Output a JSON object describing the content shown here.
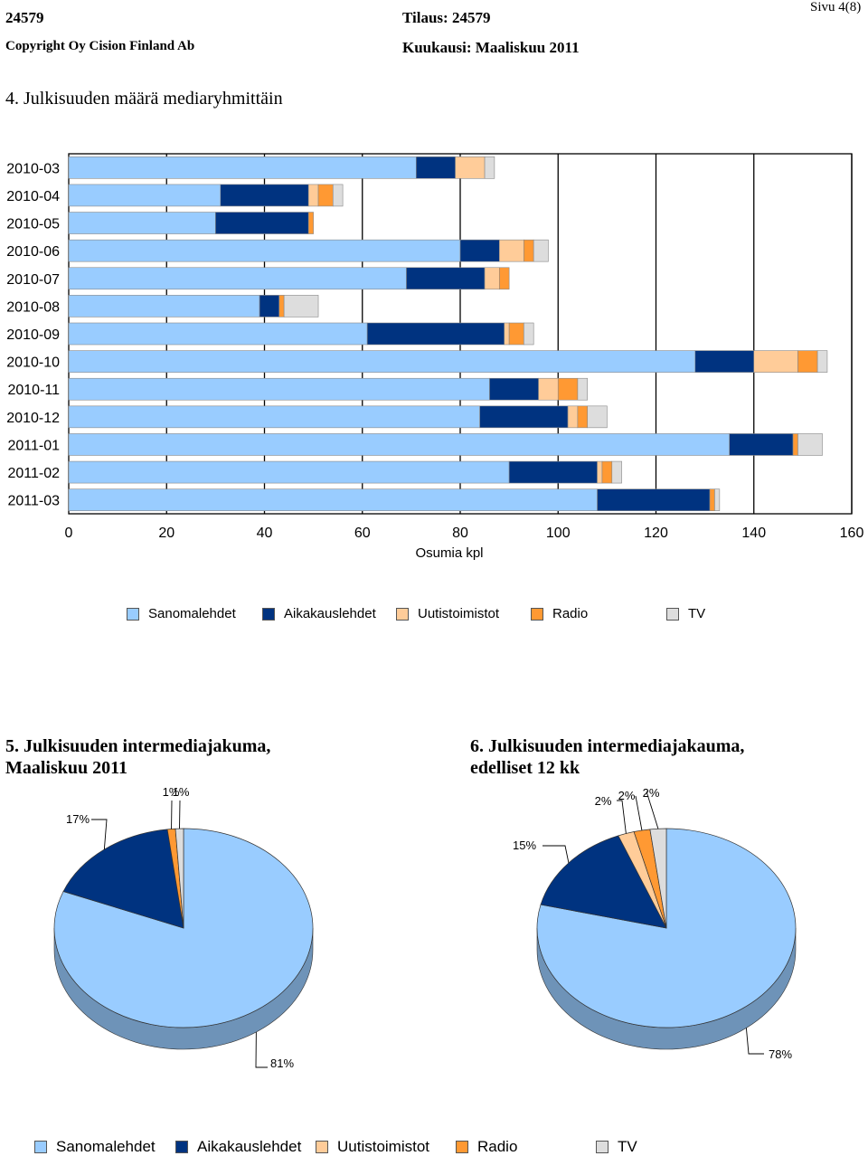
{
  "header": {
    "id": "24579",
    "order": "Tilaus: 24579",
    "page": "Sivu 4(8)",
    "copyright": "Copyright Oy Cision Finland Ab",
    "month": "Kuukausi: Maaliskuu 2011"
  },
  "section4": {
    "title": "4. Julkisuuden määrä mediaryhmittäin"
  },
  "section5": {
    "title_line1": "5. Julkisuuden intermediajakuma,",
    "title_line2": "Maaliskuu 2011"
  },
  "section6": {
    "title_line1": "6. Julkisuuden intermediajakauma,",
    "title_line2": "edelliset 12 kk"
  },
  "colors": {
    "Sanomalehdet": "#99ccff",
    "Aikakauslehdet": "#003380",
    "Uutistoimistot": "#ffcc99",
    "Radio": "#ff9933",
    "TV": "#dddddd"
  },
  "legend": [
    "Sanomalehdet",
    "Aikakauslehdet",
    "Uutistoimistot",
    "Radio",
    "TV"
  ],
  "chart_data": [
    {
      "type": "bar",
      "orientation": "horizontal",
      "stacked": true,
      "title": "4. Julkisuuden määrä mediaryhmittäin",
      "xlabel": "Osumia kpl",
      "ylabel": "",
      "xlim": [
        0,
        160
      ],
      "xticks": [
        0,
        20,
        40,
        60,
        80,
        100,
        120,
        140,
        160
      ],
      "grid": "vertical",
      "legend_position": "bottom",
      "categories": [
        "2010-03",
        "2010-04",
        "2010-05",
        "2010-06",
        "2010-07",
        "2010-08",
        "2010-09",
        "2010-10",
        "2010-11",
        "2010-12",
        "2011-01",
        "2011-02",
        "2011-03"
      ],
      "series": [
        {
          "name": "Sanomalehdet",
          "values": [
            71,
            31,
            30,
            80,
            69,
            39,
            61,
            128,
            86,
            84,
            135,
            90,
            108
          ]
        },
        {
          "name": "Aikakauslehdet",
          "values": [
            8,
            18,
            19,
            8,
            16,
            4,
            28,
            12,
            10,
            18,
            13,
            18,
            23
          ]
        },
        {
          "name": "Uutistoimistot",
          "values": [
            6,
            2,
            0,
            5,
            3,
            0,
            1,
            9,
            4,
            2,
            0,
            1,
            0
          ]
        },
        {
          "name": "Radio",
          "values": [
            0,
            3,
            1,
            2,
            2,
            1,
            3,
            4,
            4,
            2,
            1,
            2,
            1
          ]
        },
        {
          "name": "TV",
          "values": [
            2,
            2,
            0,
            3,
            0,
            7,
            2,
            2,
            2,
            4,
            5,
            2,
            1
          ]
        }
      ]
    },
    {
      "type": "pie",
      "title": "5. Julkisuuden intermediajakuma, Maaliskuu 2011",
      "legend_position": "bottom",
      "labels": [
        "Sanomalehdet",
        "Aikakauslehdet",
        "Uutistoimistot",
        "Radio",
        "TV"
      ],
      "values": [
        81,
        17,
        0,
        1,
        1
      ],
      "value_labels": [
        "81%",
        "17%",
        "",
        "1%",
        "1%"
      ]
    },
    {
      "type": "pie",
      "title": "6. Julkisuuden intermediajakauma, edelliset 12 kk",
      "legend_position": "bottom",
      "labels": [
        "Sanomalehdet",
        "Aikakauslehdet",
        "Uutistoimistot",
        "Radio",
        "TV"
      ],
      "values": [
        78,
        15,
        2,
        2,
        2
      ],
      "value_labels": [
        "78%",
        "15%",
        "2%",
        "2%",
        "2%"
      ]
    }
  ]
}
